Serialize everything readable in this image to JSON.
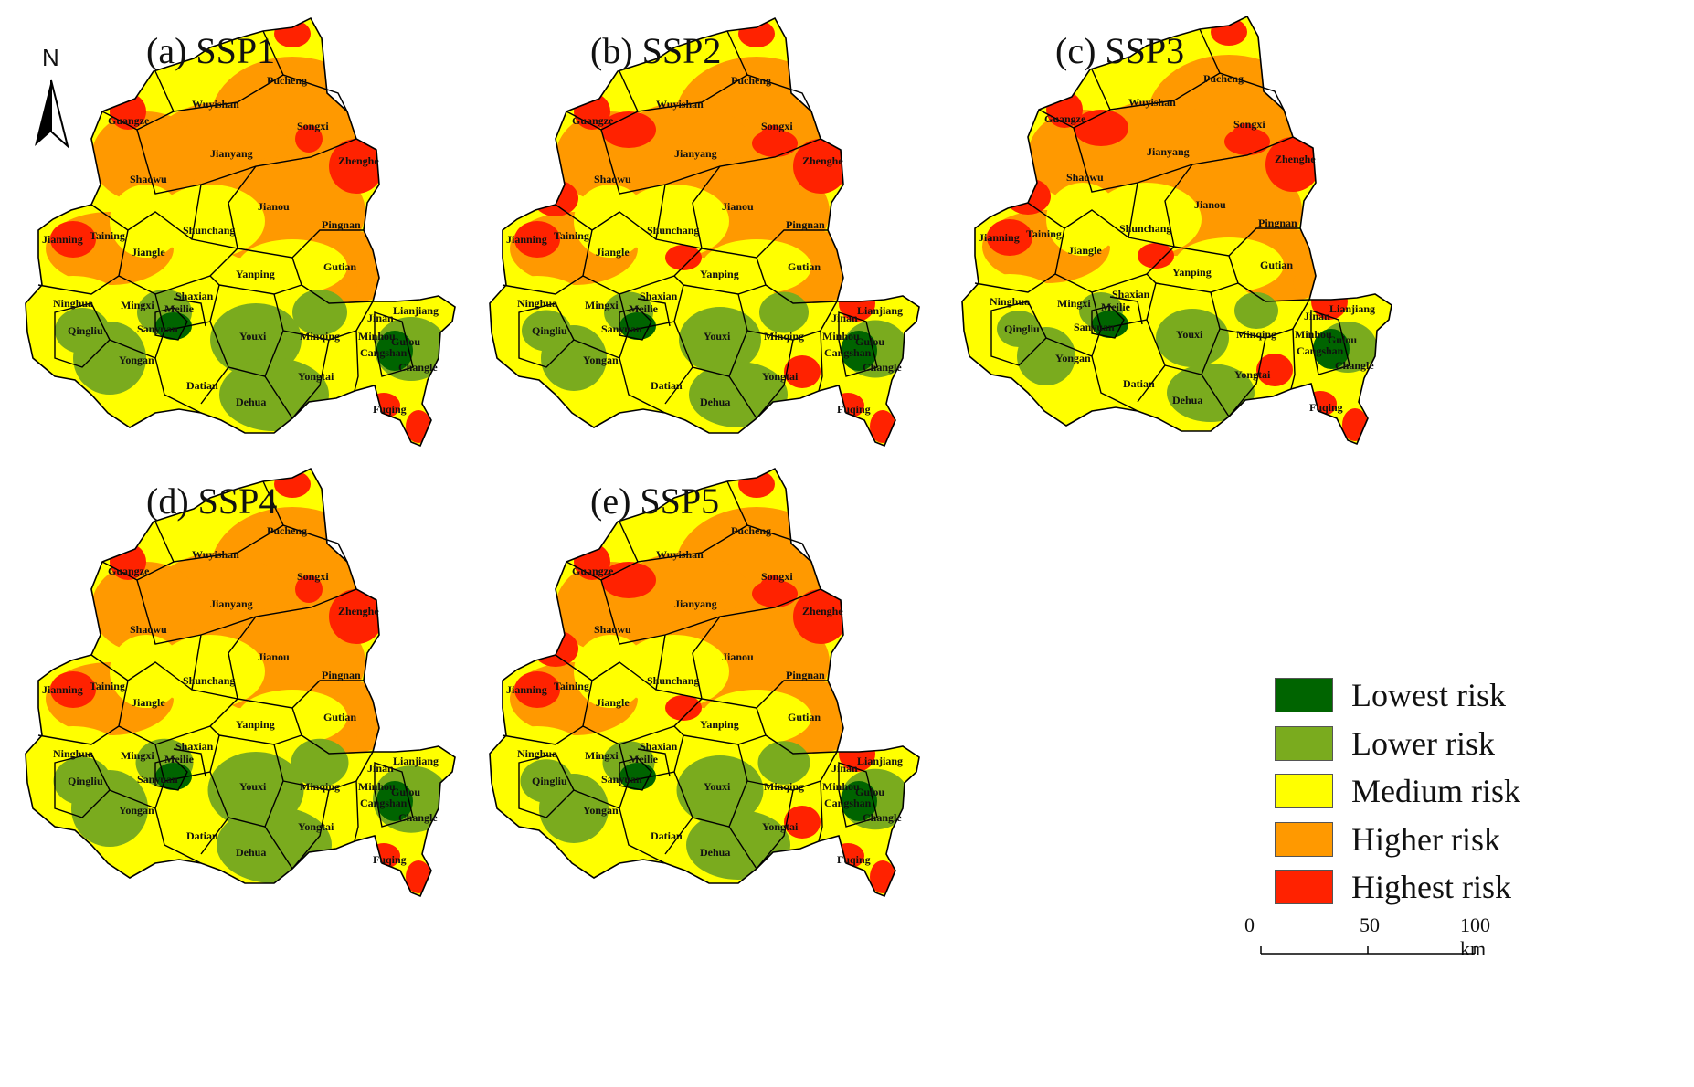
{
  "north_label": "N",
  "panels": [
    {
      "title": "(a) SSP1",
      "extra_red": false,
      "green_boost": 1.0
    },
    {
      "title": "(b) SSP2",
      "extra_red": true,
      "green_boost": 0.9
    },
    {
      "title": "(c) SSP3",
      "extra_red": true,
      "green_boost": 0.8
    },
    {
      "title": "(d) SSP4",
      "extra_red": false,
      "green_boost": 1.05
    },
    {
      "title": "(e) SSP5",
      "extra_red": true,
      "green_boost": 0.95
    }
  ],
  "regions": [
    "Pucheng",
    "Wuyishan",
    "Guangze",
    "Songxi",
    "Jianyang",
    "Zhenghe",
    "Shaowu",
    "Jianou",
    "Pingnan",
    "Taining",
    "Jianning",
    "Shunchang",
    "Jiangle",
    "Gutian",
    "Yanping",
    "Shaxian",
    "Ninghua",
    "Mingxi",
    "Meilie",
    "Lianjiang",
    "Jinan",
    "Qingliu",
    "Sanyuan",
    "Minhou",
    "Youxi",
    "Minqing",
    "Yongan",
    "Cangshan",
    "Changle",
    "Yongtai",
    "Datian",
    "Dehua",
    "Fuqing",
    "Gulou"
  ],
  "legend": [
    {
      "label": "Lowest risk",
      "color": "#006400"
    },
    {
      "label": "Lower risk",
      "color": "#7aab1e"
    },
    {
      "label": "Medium risk",
      "color": "#ffff00"
    },
    {
      "label": "Higher risk",
      "color": "#ff9900"
    },
    {
      "label": "Highest risk",
      "color": "#ff2200"
    }
  ],
  "scalebar": {
    "tick_0": "0",
    "tick_50": "50",
    "tick_100": "100 km"
  }
}
